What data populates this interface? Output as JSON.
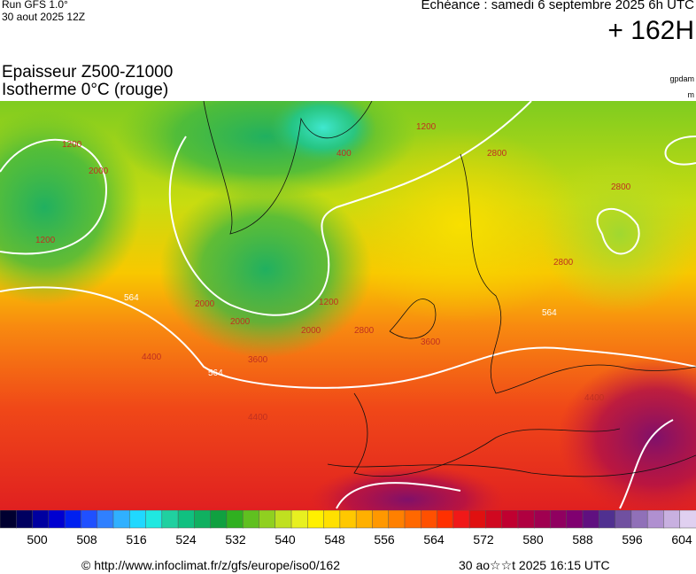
{
  "header": {
    "run": "Run GFS 1.0°",
    "run_date": "30 aout 2025 12Z",
    "forecast": "Echéance : samedi 6 septembre 2025 6h UTC",
    "lead": "+ 162H"
  },
  "title": {
    "line1": "Epaisseur Z500-Z1000",
    "line2": "Isotherme 0°C (rouge)",
    "unit1": "gpdam",
    "unit2": "m"
  },
  "map": {
    "contour_labels": [
      "1200",
      "2000",
      "1200",
      "400",
      "2000",
      "1200",
      "2000",
      "2000",
      "2800",
      "3600",
      "564",
      "4400",
      "4400",
      "2800",
      "2800",
      "3600",
      "564",
      "4400",
      "1200",
      "2800",
      "564"
    ]
  },
  "colorbar": {
    "ticks": [
      500,
      508,
      516,
      524,
      532,
      540,
      548,
      556,
      564,
      572,
      580,
      588,
      596,
      604
    ]
  },
  "footer": {
    "url": "© http://www.infoclimat.fr/z/gfs/europe/iso0/162",
    "generated": "30 ao☆☆t 2025 16:15 UTC"
  }
}
